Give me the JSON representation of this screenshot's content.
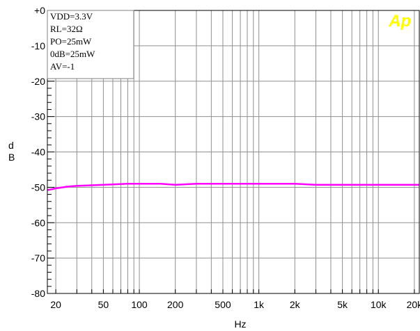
{
  "chart_data": {
    "type": "line",
    "xlabel": "Hz",
    "ylabel": [
      "d",
      "B"
    ],
    "x_scale": "log",
    "xlim": [
      17,
      22000
    ],
    "ylim": [
      -80,
      0
    ],
    "grid": true,
    "x_ticks": [
      20,
      50,
      100,
      200,
      500,
      1000,
      2000,
      5000,
      10000,
      20000
    ],
    "x_tick_labels": [
      "20",
      "50",
      "100",
      "200",
      "500",
      "1k",
      "2k",
      "5k",
      "10k",
      "20k"
    ],
    "y_ticks": [
      0,
      -10,
      -20,
      -30,
      -40,
      -50,
      -60,
      -70,
      -80
    ],
    "y_tick_labels": [
      "+0",
      "-10",
      "-20",
      "-30",
      "-40",
      "-50",
      "-60",
      "-70",
      "-80"
    ],
    "annotation_lines": [
      "VDD=3.3V",
      "RL=32Ω",
      "PO=25mW",
      "0dB=25mW",
      "AV=-1"
    ],
    "logo": "Ap",
    "series": [
      {
        "color": "#ff00ff",
        "x": [
          17,
          20,
          25,
          30,
          50,
          80,
          150,
          200,
          300,
          1000,
          2000,
          3000,
          10000,
          22000
        ],
        "y": [
          -50.8,
          -50.3,
          -49.8,
          -49.6,
          -49.3,
          -49.0,
          -49.0,
          -49.3,
          -49.0,
          -49.0,
          -49.0,
          -49.3,
          -49.3,
          -49.3
        ]
      }
    ]
  }
}
